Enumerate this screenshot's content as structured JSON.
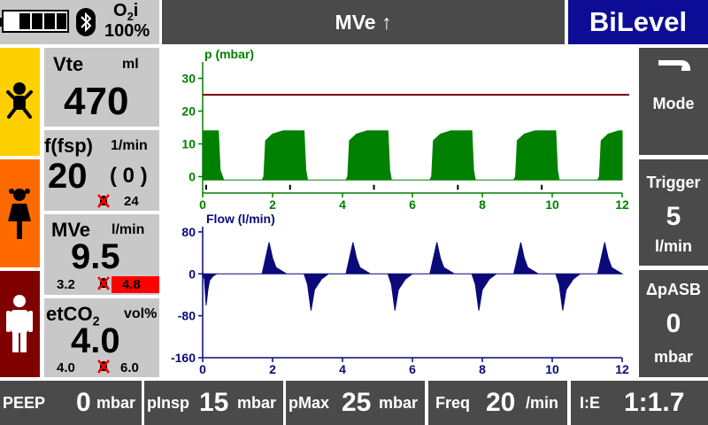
{
  "header": {
    "oxygen_label": "O2i",
    "oxygen_value": "100%",
    "alarm_text": "MVe ↑",
    "mode_name": "BiLevel"
  },
  "params": {
    "vte": {
      "label": "Vte",
      "unit": "ml",
      "value": "470"
    },
    "freq": {
      "label": "f(fsp)",
      "unit": "1/min",
      "value": "20",
      "secondary": "( 0 )",
      "limit": "24"
    },
    "mve": {
      "label": "MVe",
      "unit": "l/min",
      "value": "9.5",
      "low": "3.2",
      "high": "4.8"
    },
    "etco2": {
      "label": "etCO2",
      "unit": "vol%",
      "value": "4.0",
      "low": "4.0",
      "high": "6.0"
    }
  },
  "right_buttons": {
    "mode": {
      "label": "Mode"
    },
    "trigger": {
      "label": "Trigger",
      "value": "5",
      "unit": "l/min"
    },
    "dpasb": {
      "label": "ΔpASB",
      "value": "0",
      "unit": "mbar"
    }
  },
  "bottom": {
    "peep": {
      "label": "PEEP",
      "value": "0",
      "unit": "mbar"
    },
    "pinsp": {
      "label": "pInsp",
      "value": "15",
      "unit": "mbar"
    },
    "pmax": {
      "label": "pMax",
      "value": "25",
      "unit": "mbar"
    },
    "freq": {
      "label": "Freq",
      "value": "20",
      "unit": "/min"
    },
    "ie": {
      "label": "I:E",
      "value": "1:1.7"
    }
  },
  "colors": {
    "pressure_wave": "#008000",
    "flow_wave": "#0a0a7a",
    "pmax_line": "#800000",
    "header_mode_bg": "#0c0c96",
    "alarm_red": "#ff0000",
    "infant_bg": "#ffd000",
    "child_bg": "#ff6a00",
    "adult_bg": "#800000"
  },
  "chart_data": [
    {
      "type": "area",
      "title": "p (mbar)",
      "xlim": [
        0,
        12
      ],
      "ylim": [
        -5,
        35
      ],
      "xticks": [
        "0",
        "2",
        "4",
        "6",
        "8",
        "10",
        "12"
      ],
      "yticks": [
        "30",
        "20",
        "10",
        "0"
      ],
      "pmax_line": 25,
      "breath_period_s": 2.4,
      "baseline": -1,
      "series": [
        {
          "x": [
            0,
            0.45,
            0.5,
            0.6,
            1.7,
            1.75,
            1.8,
            2.0,
            2.3,
            2.9,
            2.95,
            3.0,
            4.1,
            4.15,
            4.2,
            4.4,
            4.7,
            5.3,
            5.35,
            5.4,
            6.5,
            6.55,
            6.6,
            6.8,
            7.1,
            7.7,
            7.75,
            7.8,
            8.9,
            8.95,
            9.0,
            9.2,
            9.5,
            10.1,
            10.15,
            10.2,
            11.3,
            11.35,
            11.4,
            11.6,
            11.9,
            12.0
          ],
          "y": [
            14,
            14,
            2,
            -1,
            -1,
            0,
            11,
            13,
            14,
            14,
            2,
            -1,
            -1,
            0,
            11,
            13,
            14,
            14,
            2,
            -1,
            -1,
            0,
            11,
            13,
            14,
            14,
            2,
            -1,
            -1,
            0,
            11,
            13,
            14,
            14,
            2,
            -1,
            -1,
            0,
            11,
            13,
            14,
            14
          ]
        }
      ]
    },
    {
      "type": "area",
      "title": "Flow (l/min)",
      "xlim": [
        0,
        12
      ],
      "ylim": [
        -160,
        90
      ],
      "xticks": [
        "0",
        "2",
        "4",
        "6",
        "8",
        "10",
        "12"
      ],
      "yticks": [
        "80",
        "0",
        "-80",
        "-160"
      ],
      "series": [
        {
          "x": [
            0,
            0.05,
            0.1,
            0.15,
            0.2,
            0.3,
            0.4,
            0.5,
            0.6,
            1.7,
            1.8,
            1.9,
            2.0,
            2.1,
            2.3,
            2.4,
            2.5,
            2.9,
            3.0,
            3.1,
            3.2,
            3.4,
            3.6,
            4.1,
            4.2,
            4.3,
            4.4,
            4.5,
            4.7,
            4.8,
            4.9,
            5.3,
            5.4,
            5.5,
            5.6,
            5.8,
            6.0,
            6.5,
            6.6,
            6.7,
            6.8,
            6.9,
            7.1,
            7.2,
            7.3,
            7.7,
            7.8,
            7.9,
            8.0,
            8.2,
            8.4,
            8.9,
            9.0,
            9.1,
            9.2,
            9.3,
            9.5,
            9.6,
            9.7,
            10.1,
            10.2,
            10.3,
            10.4,
            10.6,
            10.8,
            11.3,
            11.4,
            11.5,
            11.6,
            11.7,
            11.9,
            12.0
          ],
          "y": [
            0,
            -10,
            -60,
            -30,
            -12,
            -4,
            0,
            0,
            0,
            0,
            30,
            60,
            30,
            12,
            4,
            0,
            0,
            0,
            -20,
            -70,
            -30,
            -10,
            0,
            0,
            30,
            60,
            30,
            12,
            4,
            0,
            0,
            0,
            -20,
            -70,
            -30,
            -10,
            0,
            0,
            30,
            60,
            30,
            12,
            4,
            0,
            0,
            0,
            -20,
            -70,
            -30,
            -10,
            0,
            0,
            30,
            60,
            30,
            12,
            4,
            0,
            0,
            0,
            -20,
            -70,
            -30,
            -10,
            0,
            0,
            30,
            60,
            30,
            12,
            4,
            0
          ]
        }
      ]
    }
  ]
}
